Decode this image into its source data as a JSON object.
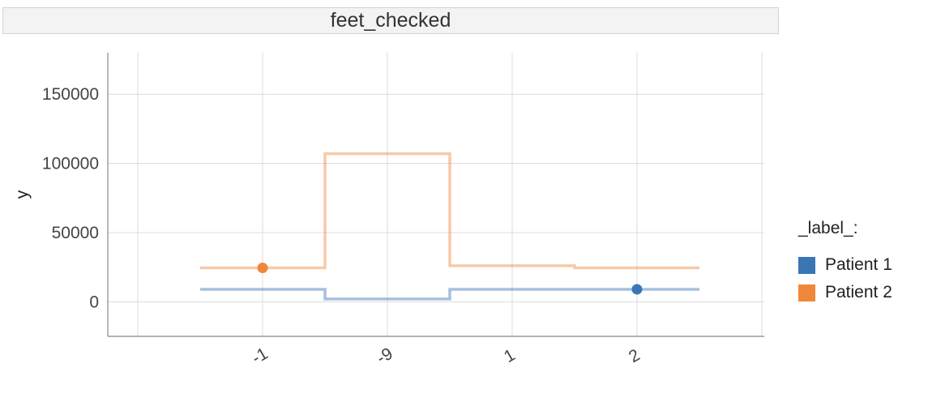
{
  "chart_data": {
    "type": "line",
    "subtype": "step",
    "facet_title": "feet_checked",
    "title": "",
    "xlabel": "",
    "ylabel": "y",
    "categories": [
      "-1",
      "-9",
      "1",
      "2"
    ],
    "ylim": [
      -25000,
      180000
    ],
    "yticks": [
      0,
      50000,
      100000,
      150000
    ],
    "grid": true,
    "legend": {
      "title": "_label_:",
      "position": "right"
    },
    "series": [
      {
        "name": "Patient 1",
        "color": "#3a76b4",
        "values": [
          9000,
          2000,
          9000,
          9000
        ],
        "marker_index": 3
      },
      {
        "name": "Patient 2",
        "color": "#f0883c",
        "values": [
          24500,
          107000,
          26000,
          24500
        ],
        "marker_index": 0
      }
    ]
  }
}
